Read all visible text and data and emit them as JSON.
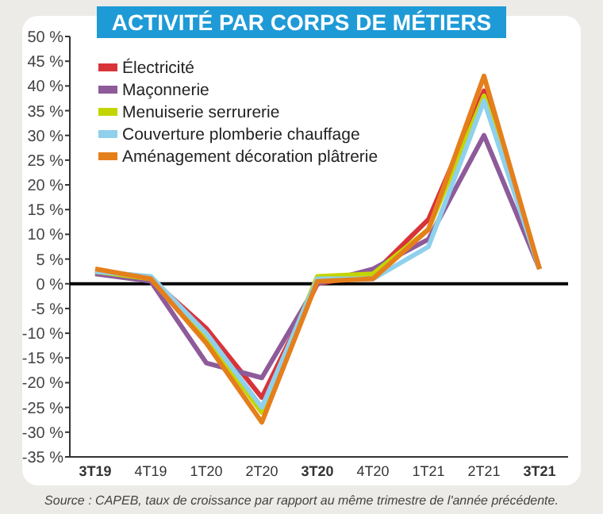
{
  "chart_data": {
    "type": "line",
    "title": "ACTIVITÉ PAR CORPS DE MÉTIERS",
    "categories": [
      "3T19",
      "4T19",
      "1T20",
      "2T20",
      "3T20",
      "4T20",
      "1T21",
      "2T21",
      "3T21"
    ],
    "series": [
      {
        "name": "Électricité",
        "color": "#d9333a",
        "values": [
          2.5,
          1,
          -9,
          -23,
          0,
          2,
          13,
          39,
          3
        ]
      },
      {
        "name": "Maçonnerie",
        "color": "#8e5b9a",
        "values": [
          2,
          0.5,
          -16,
          -19,
          0,
          3,
          9,
          30,
          3
        ]
      },
      {
        "name": "Menuiserie serrurerie",
        "color": "#c3d500",
        "values": [
          2.5,
          1,
          -11,
          -26,
          1.5,
          2,
          11,
          38,
          3
        ]
      },
      {
        "name": "Couverture plomberie chauffage",
        "color": "#8fd0ec",
        "values": [
          2.5,
          1.5,
          -10,
          -25,
          1,
          1,
          7.5,
          37,
          3
        ]
      },
      {
        "name": "Aménagement décoration plâtrerie",
        "color": "#e57f1c",
        "values": [
          3,
          1,
          -12,
          -28,
          0.5,
          1,
          11,
          42,
          3
        ]
      }
    ],
    "ylim": [
      -35,
      50
    ],
    "yticks": [
      {
        "value": -35,
        "label": "-35 %"
      },
      {
        "value": -30,
        "label": "-30 %"
      },
      {
        "value": -25,
        "label": "-25 %"
      },
      {
        "value": -20,
        "label": "-20 %"
      },
      {
        "value": -15,
        "label": "-15 %"
      },
      {
        "value": -10,
        "label": "-10 %"
      },
      {
        "value": -5,
        "label": "-5 %"
      },
      {
        "value": 0,
        "label": "0 %"
      },
      {
        "value": 5,
        "label": "5 %"
      },
      {
        "value": 10,
        "label": "10 %"
      },
      {
        "value": 15,
        "label": "15 %"
      },
      {
        "value": 20,
        "label": "20 %"
      },
      {
        "value": 25,
        "label": "25 %"
      },
      {
        "value": 30,
        "label": "30 %"
      },
      {
        "value": 35,
        "label": "35 %"
      },
      {
        "value": 40,
        "label": "40 %"
      },
      {
        "value": 45,
        "label": "45 %"
      },
      {
        "value": 50,
        "label": "50 %"
      }
    ],
    "ref_lines": [
      {
        "axis": "y",
        "value": 0,
        "color": "#000000"
      }
    ],
    "grid": false,
    "legend": "top left",
    "marker": "none",
    "line_style": "solid",
    "annotations": [
      "Source : CAPEB, taux de croissance par rapport au même trimestre de l'année précédente."
    ]
  }
}
